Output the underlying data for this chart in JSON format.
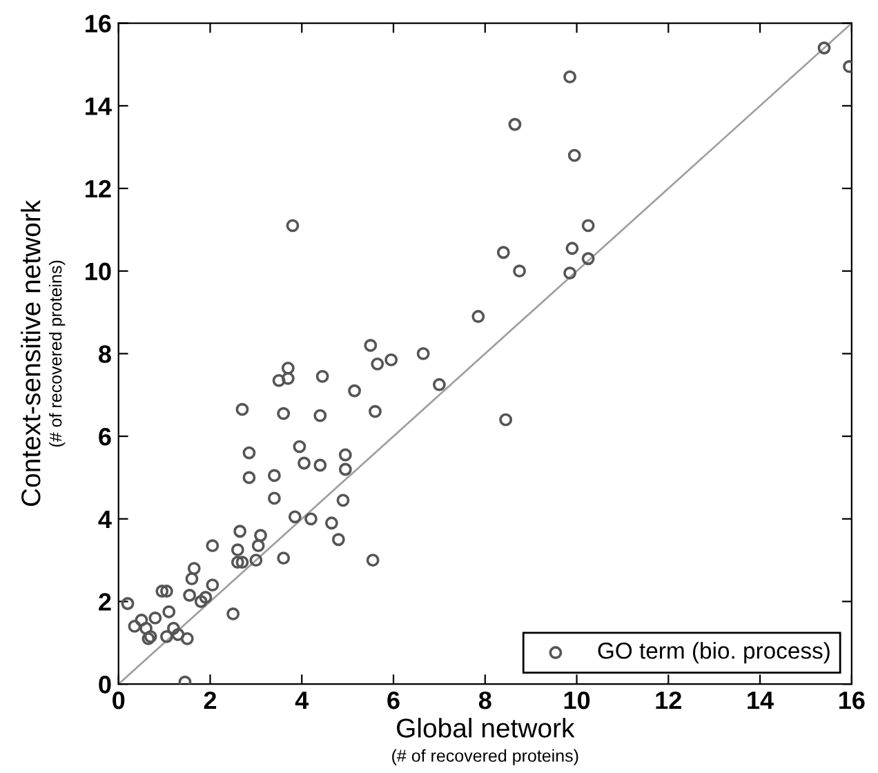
{
  "chart_data": {
    "type": "scatter",
    "xlabel": "Global network",
    "ylabel": "Context-sensitive network",
    "annotations": [
      "(# of recovered proteins)",
      "(# of recovered proteins)"
    ],
    "xlim": [
      0,
      16
    ],
    "ylim": [
      0,
      16
    ],
    "xticks": [
      0,
      2,
      4,
      6,
      8,
      10,
      12,
      14,
      16
    ],
    "yticks": [
      0,
      2,
      4,
      6,
      8,
      10,
      12,
      14,
      16
    ],
    "grid": false,
    "legend": "bottom right",
    "marker": "circle",
    "series": [
      {
        "name": "GO term (bio. process)",
        "color": "#555555",
        "x": [
          0.2,
          0.35,
          0.5,
          0.6,
          0.65,
          0.7,
          0.8,
          0.95,
          1.05,
          1.05,
          1.1,
          1.2,
          1.3,
          1.45,
          1.5,
          1.55,
          1.6,
          1.65,
          1.8,
          1.9,
          2.05,
          2.05,
          2.5,
          2.6,
          2.6,
          2.65,
          2.7,
          2.7,
          2.85,
          2.85,
          3.0,
          3.05,
          3.1,
          3.4,
          3.4,
          3.5,
          3.6,
          3.6,
          3.7,
          3.7,
          3.8,
          3.85,
          3.95,
          4.05,
          4.2,
          4.4,
          4.4,
          4.45,
          4.65,
          4.8,
          4.9,
          4.95,
          4.95,
          5.15,
          5.5,
          5.55,
          5.6,
          5.65,
          5.95,
          6.65,
          7.0,
          7.85,
          8.4,
          8.45,
          8.65,
          8.75,
          9.85,
          9.85,
          9.9,
          9.95,
          10.25,
          10.25,
          15.4,
          15.95
        ],
        "values": [
          1.95,
          1.4,
          1.55,
          1.35,
          1.1,
          1.15,
          1.6,
          2.25,
          2.25,
          1.15,
          1.75,
          1.35,
          1.2,
          0.05,
          1.1,
          2.15,
          2.55,
          2.8,
          2.0,
          2.1,
          2.4,
          3.35,
          1.7,
          2.95,
          3.25,
          3.7,
          2.95,
          6.65,
          5.6,
          5.0,
          3.0,
          3.35,
          3.6,
          4.5,
          5.05,
          7.35,
          6.55,
          3.05,
          7.65,
          7.4,
          11.1,
          4.05,
          5.75,
          5.35,
          4.0,
          5.3,
          6.5,
          7.45,
          3.9,
          3.5,
          4.45,
          5.2,
          5.55,
          7.1,
          8.2,
          3.0,
          6.6,
          7.75,
          7.85,
          8.0,
          7.25,
          8.9,
          10.45,
          6.4,
          13.55,
          10.0,
          14.7,
          9.95,
          10.55,
          12.8,
          11.1,
          10.3,
          15.4,
          14.95
        ]
      },
      {
        "color": "#a0a0a0",
        "type": "line",
        "marker": "none",
        "line_style": "solid",
        "x": [
          0,
          16
        ],
        "values": [
          0,
          16
        ]
      }
    ]
  }
}
